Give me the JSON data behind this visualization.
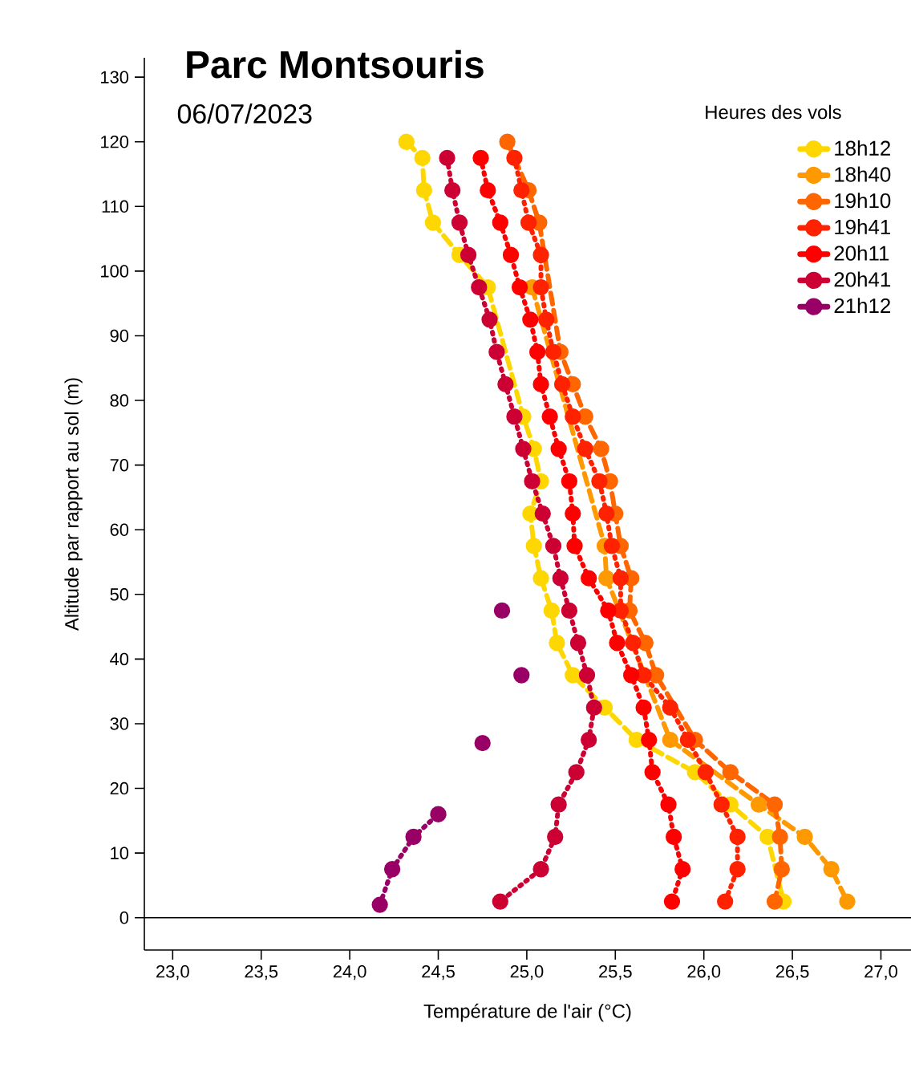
{
  "chart_data": {
    "type": "line",
    "title": "Parc Montsouris",
    "subtitle": "06/07/2023",
    "xlabel": "Température de l'air (°C)",
    "ylabel": "Altitude par rapport au sol (m)",
    "legend_title": "Heures des vols",
    "legend": "top right",
    "marker": "circle",
    "grid": false,
    "xlim": [
      22.84,
      27.17
    ],
    "ylim": [
      -5,
      133
    ],
    "xticks": [
      {
        "value": 23,
        "label": "23,0"
      },
      {
        "value": 23.5,
        "label": "23,5"
      },
      {
        "value": 24,
        "label": "24,0"
      },
      {
        "value": 24.5,
        "label": "24,5"
      },
      {
        "value": 25,
        "label": "25,0"
      },
      {
        "value": 25.5,
        "label": "25,5"
      },
      {
        "value": 26,
        "label": "26,0"
      },
      {
        "value": 26.5,
        "label": "26,5"
      },
      {
        "value": 27,
        "label": "27,0"
      }
    ],
    "yticks": [
      0,
      10,
      20,
      30,
      40,
      50,
      60,
      70,
      80,
      90,
      100,
      110,
      120,
      130
    ],
    "ref_lines": [
      {
        "axis": "y",
        "value": 0,
        "color": "#000000"
      }
    ],
    "series": [
      {
        "name": "18h12",
        "color": "#ffd700",
        "line_style": "dashed",
        "x": [
          24.32,
          24.41,
          24.42,
          24.47,
          24.62,
          24.78,
          24.98,
          25.04,
          25.08,
          25.02,
          25.04,
          25.08,
          25.14,
          25.17,
          25.26,
          25.44,
          25.62,
          25.95,
          26.15,
          26.36,
          26.45
        ],
        "values": [
          120,
          117.5,
          112.5,
          107.5,
          102.5,
          97.5,
          77.5,
          72.5,
          67.5,
          62.5,
          57.5,
          52.5,
          47.5,
          42.5,
          37.5,
          32.5,
          27.5,
          22.5,
          17.5,
          12.5,
          2.5
        ]
      },
      {
        "name": "18h40",
        "color": "#ff9900",
        "line_style": "dashed",
        "x": [
          25.03,
          25.44,
          25.45,
          25.81,
          26.31,
          26.57,
          26.72,
          26.81
        ],
        "values": [
          97.5,
          57.5,
          52.5,
          27.5,
          17.5,
          12.5,
          7.5,
          2.5
        ]
      },
      {
        "name": "19h10",
        "color": "#ff6600",
        "line_style": "dashed",
        "x": [
          24.89,
          25.01,
          25.07,
          25.19,
          25.26,
          25.33,
          25.42,
          25.47,
          25.5,
          25.53,
          25.59,
          25.58,
          25.67,
          25.73,
          25.95,
          26.15,
          26.4,
          26.43,
          26.44,
          26.4
        ],
        "values": [
          120,
          112.5,
          107.5,
          87.5,
          82.5,
          77.5,
          72.5,
          67.5,
          62.5,
          57.5,
          52.5,
          47.5,
          42.5,
          37.5,
          27.5,
          22.5,
          17.5,
          12.5,
          7.5,
          2.5
        ]
      },
      {
        "name": "19h41",
        "color": "#ff2200",
        "line_style": "dotted",
        "x": [
          24.93,
          24.97,
          25.01,
          25.08,
          25.08,
          25.11,
          25.15,
          25.2,
          25.26,
          25.33,
          25.41,
          25.45,
          25.48,
          25.53,
          25.53,
          25.6,
          25.66,
          25.81,
          25.91,
          26.01,
          26.1,
          26.19,
          26.19,
          26.12
        ],
        "values": [
          117.5,
          112.5,
          107.5,
          102.5,
          97.5,
          92.5,
          87.5,
          82.5,
          77.5,
          72.5,
          67.5,
          62.5,
          57.5,
          52.5,
          47.5,
          42.5,
          37.5,
          32.5,
          27.5,
          22.5,
          17.5,
          12.5,
          7.5,
          2.5
        ]
      },
      {
        "name": "20h11",
        "color": "#ff0000",
        "line_style": "dotted",
        "x": [
          24.74,
          24.78,
          24.85,
          24.91,
          24.96,
          25.02,
          25.06,
          25.08,
          25.13,
          25.18,
          25.24,
          25.26,
          25.27,
          25.35,
          25.46,
          25.51,
          25.59,
          25.66,
          25.69,
          25.71,
          25.8,
          25.83,
          25.88,
          25.82
        ],
        "values": [
          117.5,
          112.5,
          107.5,
          102.5,
          97.5,
          92.5,
          87.5,
          82.5,
          77.5,
          72.5,
          67.5,
          62.5,
          57.5,
          52.5,
          47.5,
          42.5,
          37.5,
          32.5,
          27.5,
          22.5,
          17.5,
          12.5,
          7.5,
          2.5
        ]
      },
      {
        "name": "20h41",
        "color": "#cc0033",
        "line_style": "dotted",
        "x": [
          24.55,
          24.58,
          24.62,
          24.67,
          24.73,
          24.79,
          24.83,
          24.88,
          24.93,
          24.98,
          25.03,
          25.09,
          25.15,
          25.19,
          25.24,
          25.29,
          25.34,
          25.38,
          25.35,
          25.28,
          25.18,
          25.16,
          25.08,
          24.85
        ],
        "values": [
          117.5,
          112.5,
          107.5,
          102.5,
          97.5,
          92.5,
          87.5,
          82.5,
          77.5,
          72.5,
          67.5,
          62.5,
          57.5,
          52.5,
          47.5,
          42.5,
          37.5,
          32.5,
          27.5,
          22.5,
          17.5,
          12.5,
          7.5,
          2.5
        ]
      },
      {
        "name": "21h12",
        "color": "#990066",
        "line_style": "dotted",
        "x": [
          24.17,
          24.24,
          24.36,
          24.5,
          null,
          24.75,
          null,
          24.97,
          null,
          24.86
        ],
        "values": [
          2,
          7.5,
          12.5,
          16,
          null,
          27,
          null,
          37.5,
          null,
          47.5
        ]
      }
    ]
  }
}
